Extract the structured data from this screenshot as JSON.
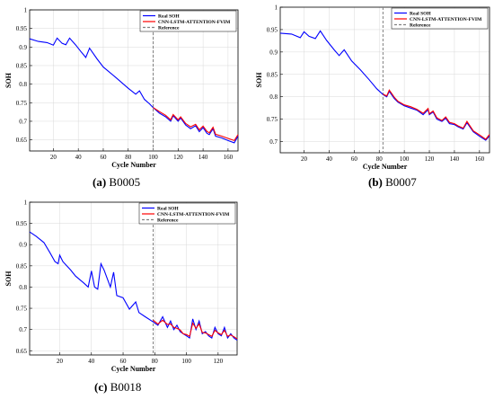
{
  "figure": {
    "colors": {
      "real": "#0000ff",
      "pred": "#ff0000",
      "reference": "#808080",
      "grid": "#d9d9d9"
    },
    "legend": {
      "real": "Real SOH",
      "pred": "CNN-LSTM-ATTENTION-FVIM",
      "reference": "Reference"
    }
  },
  "captions": [
    {
      "tag": "(a)",
      "name": "B0005"
    },
    {
      "tag": "(b)",
      "name": "B0007"
    },
    {
      "tag": "(c)",
      "name": "B0018"
    }
  ],
  "chart_data": [
    {
      "type": "line",
      "legend_position": "top-right",
      "grid": true,
      "xlabel": "Cycle Number",
      "ylabel": "SOH",
      "xlim": [
        1,
        168
      ],
      "ylim": [
        0.62,
        1.0
      ],
      "xticks": [
        20,
        40,
        60,
        80,
        100,
        120,
        140,
        160
      ],
      "yticks": [
        0.65,
        0.7,
        0.75,
        0.8,
        0.85,
        0.9,
        0.95,
        1
      ],
      "reference_x": 100,
      "series": [
        {
          "name": "Real SOH",
          "x": [
            1,
            8,
            15,
            20,
            23,
            27,
            30,
            33,
            38,
            42,
            46,
            49,
            55,
            60,
            70,
            80,
            86,
            89,
            93,
            97,
            100,
            105,
            110,
            114,
            116,
            120,
            122,
            126,
            130,
            134,
            137,
            140,
            143,
            145,
            148,
            150,
            155,
            160,
            165,
            168
          ],
          "y": [
            0.922,
            0.915,
            0.912,
            0.905,
            0.924,
            0.91,
            0.906,
            0.924,
            0.905,
            0.888,
            0.872,
            0.897,
            0.868,
            0.846,
            0.818,
            0.789,
            0.773,
            0.782,
            0.759,
            0.747,
            0.737,
            0.722,
            0.712,
            0.7,
            0.715,
            0.7,
            0.709,
            0.69,
            0.68,
            0.688,
            0.672,
            0.683,
            0.668,
            0.664,
            0.68,
            0.66,
            0.655,
            0.648,
            0.642,
            0.66
          ]
        },
        {
          "name": "CNN-LSTM-ATTENTION-FVIM",
          "x": [
            100,
            105,
            110,
            114,
            116,
            120,
            122,
            126,
            130,
            134,
            137,
            140,
            143,
            145,
            148,
            150,
            155,
            160,
            165,
            168
          ],
          "y": [
            0.737,
            0.726,
            0.716,
            0.704,
            0.718,
            0.704,
            0.712,
            0.694,
            0.685,
            0.692,
            0.677,
            0.687,
            0.673,
            0.669,
            0.684,
            0.665,
            0.66,
            0.654,
            0.648,
            0.664
          ]
        }
      ]
    },
    {
      "type": "line",
      "legend_position": "top-right",
      "grid": true,
      "xlabel": "Cycle Number",
      "ylabel": "SOH",
      "xlim": [
        1,
        168
      ],
      "ylim": [
        0.675,
        1.0
      ],
      "xticks": [
        20,
        40,
        60,
        80,
        100,
        120,
        140,
        160
      ],
      "yticks": [
        0.7,
        0.75,
        0.8,
        0.85,
        0.9,
        0.95,
        1
      ],
      "reference_x": 83,
      "series": [
        {
          "name": "Real SOH",
          "x": [
            1,
            10,
            17,
            20,
            24,
            29,
            33,
            38,
            44,
            48,
            52,
            58,
            65,
            72,
            78,
            83,
            86,
            88,
            92,
            95,
            100,
            105,
            110,
            115,
            119,
            120,
            123,
            126,
            130,
            133,
            136,
            140,
            143,
            147,
            150,
            155,
            160,
            165,
            168
          ],
          "y": [
            0.942,
            0.94,
            0.932,
            0.945,
            0.935,
            0.93,
            0.947,
            0.926,
            0.905,
            0.892,
            0.905,
            0.88,
            0.86,
            0.838,
            0.818,
            0.805,
            0.8,
            0.812,
            0.796,
            0.788,
            0.78,
            0.775,
            0.77,
            0.76,
            0.771,
            0.76,
            0.766,
            0.75,
            0.745,
            0.752,
            0.74,
            0.738,
            0.733,
            0.728,
            0.742,
            0.722,
            0.712,
            0.703,
            0.713
          ]
        },
        {
          "name": "CNN-LSTM-ATTENTION-FVIM",
          "x": [
            83,
            86,
            88,
            92,
            95,
            100,
            105,
            110,
            115,
            119,
            120,
            123,
            126,
            130,
            133,
            136,
            140,
            143,
            147,
            150,
            155,
            160,
            165,
            168
          ],
          "y": [
            0.806,
            0.802,
            0.815,
            0.799,
            0.79,
            0.782,
            0.778,
            0.772,
            0.763,
            0.774,
            0.762,
            0.768,
            0.753,
            0.747,
            0.755,
            0.743,
            0.74,
            0.735,
            0.73,
            0.745,
            0.724,
            0.715,
            0.705,
            0.716
          ]
        }
      ]
    },
    {
      "type": "line",
      "legend_position": "top-right",
      "grid": true,
      "xlabel": "Cycle Number",
      "ylabel": "SOH",
      "xlim": [
        1,
        132
      ],
      "ylim": [
        0.64,
        1.0
      ],
      "xticks": [
        20,
        40,
        60,
        80,
        100,
        120
      ],
      "yticks": [
        0.65,
        0.7,
        0.75,
        0.8,
        0.85,
        0.9,
        0.95,
        1
      ],
      "reference_x": 79,
      "series": [
        {
          "name": "Real SOH",
          "x": [
            1,
            5,
            10,
            14,
            17,
            19,
            20,
            22,
            27,
            30,
            35,
            38,
            40,
            42,
            44,
            46,
            48,
            52,
            54,
            56,
            60,
            64,
            68,
            70,
            74,
            79,
            82,
            85,
            88,
            90,
            92,
            94,
            96,
            98,
            100,
            102,
            104,
            106,
            108,
            110,
            112,
            114,
            116,
            118,
            120,
            122,
            124,
            126,
            128,
            130,
            132
          ],
          "y": [
            0.93,
            0.92,
            0.905,
            0.88,
            0.86,
            0.855,
            0.875,
            0.86,
            0.84,
            0.826,
            0.81,
            0.8,
            0.838,
            0.8,
            0.795,
            0.855,
            0.84,
            0.8,
            0.835,
            0.78,
            0.775,
            0.748,
            0.765,
            0.74,
            0.73,
            0.718,
            0.71,
            0.73,
            0.705,
            0.72,
            0.7,
            0.71,
            0.695,
            0.69,
            0.685,
            0.68,
            0.725,
            0.7,
            0.72,
            0.69,
            0.695,
            0.685,
            0.68,
            0.705,
            0.69,
            0.685,
            0.705,
            0.68,
            0.69,
            0.68,
            0.675
          ]
        },
        {
          "name": "CNN-LSTM-ATTENTION-FVIM",
          "x": [
            79,
            82,
            85,
            88,
            90,
            92,
            94,
            96,
            98,
            100,
            102,
            104,
            106,
            108,
            110,
            112,
            114,
            116,
            118,
            120,
            122,
            124,
            126,
            128,
            130,
            132
          ],
          "y": [
            0.722,
            0.713,
            0.722,
            0.712,
            0.713,
            0.705,
            0.703,
            0.699,
            0.69,
            0.688,
            0.684,
            0.715,
            0.703,
            0.713,
            0.693,
            0.692,
            0.688,
            0.684,
            0.698,
            0.692,
            0.688,
            0.698,
            0.684,
            0.687,
            0.683,
            0.678
          ]
        }
      ]
    }
  ]
}
